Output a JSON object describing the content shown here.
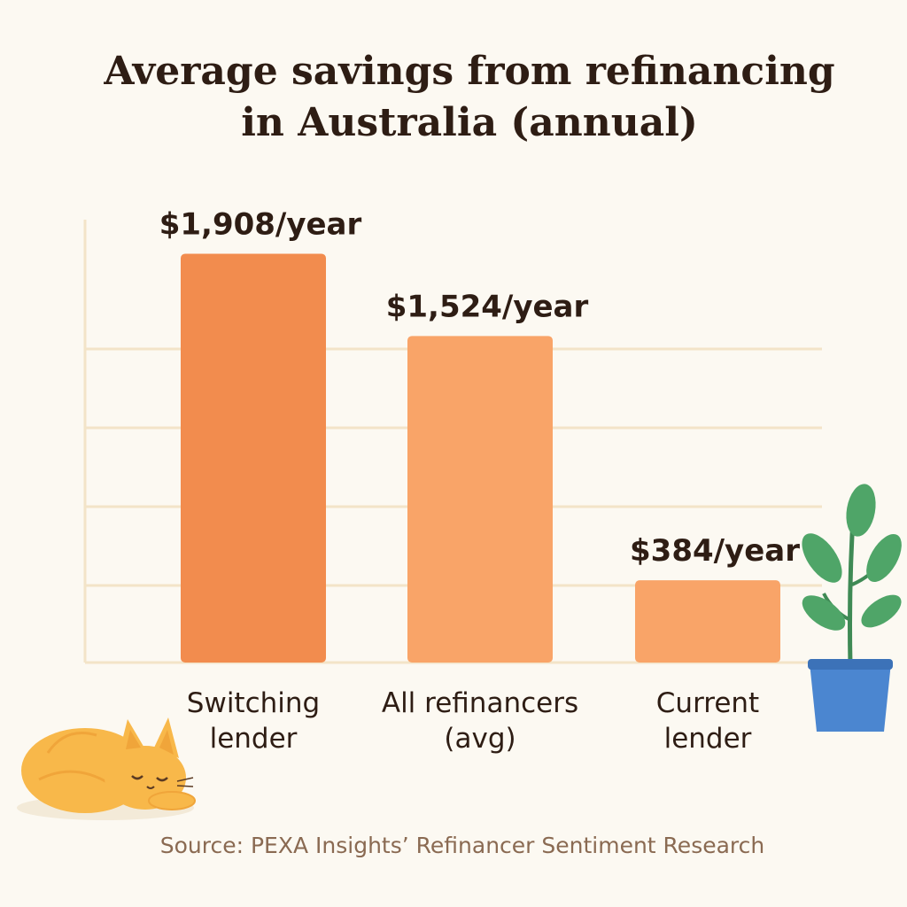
{
  "chart_data": {
    "type": "bar",
    "title": "Average savings from refinancing in Australia (annual)",
    "title_lines": [
      "Average savings from refinancing",
      "in Australia (annual)"
    ],
    "categories": [
      "Switching lender",
      "All refinancers (avg)",
      "Current lender"
    ],
    "category_display": [
      "Switching\nlender",
      "All refinancers\n(avg)",
      "Current\nlender"
    ],
    "values": [
      1908,
      1524,
      384
    ],
    "data_labels": [
      "$1,908/year",
      "$1,524/year",
      "$384/year"
    ],
    "bar_colors": [
      "#f28c4e",
      "#f9a468",
      "#f9a468"
    ],
    "ylim": [
      0,
      2100
    ],
    "grid": true,
    "xlabel": "",
    "ylabel": ""
  },
  "source": "Source: PEXA Insights’ Refinancer Sentiment Research",
  "decorations": [
    "sleeping-cat-illustration",
    "potted-plant-illustration"
  ],
  "colors": {
    "background": "#fcf9f2",
    "text": "#2e1d14",
    "grid": "#f3e4c8",
    "source_text": "#8a6a52",
    "cat": "#f8b84a",
    "plant_leaf": "#4fa568",
    "pot": "#4b86d0"
  }
}
